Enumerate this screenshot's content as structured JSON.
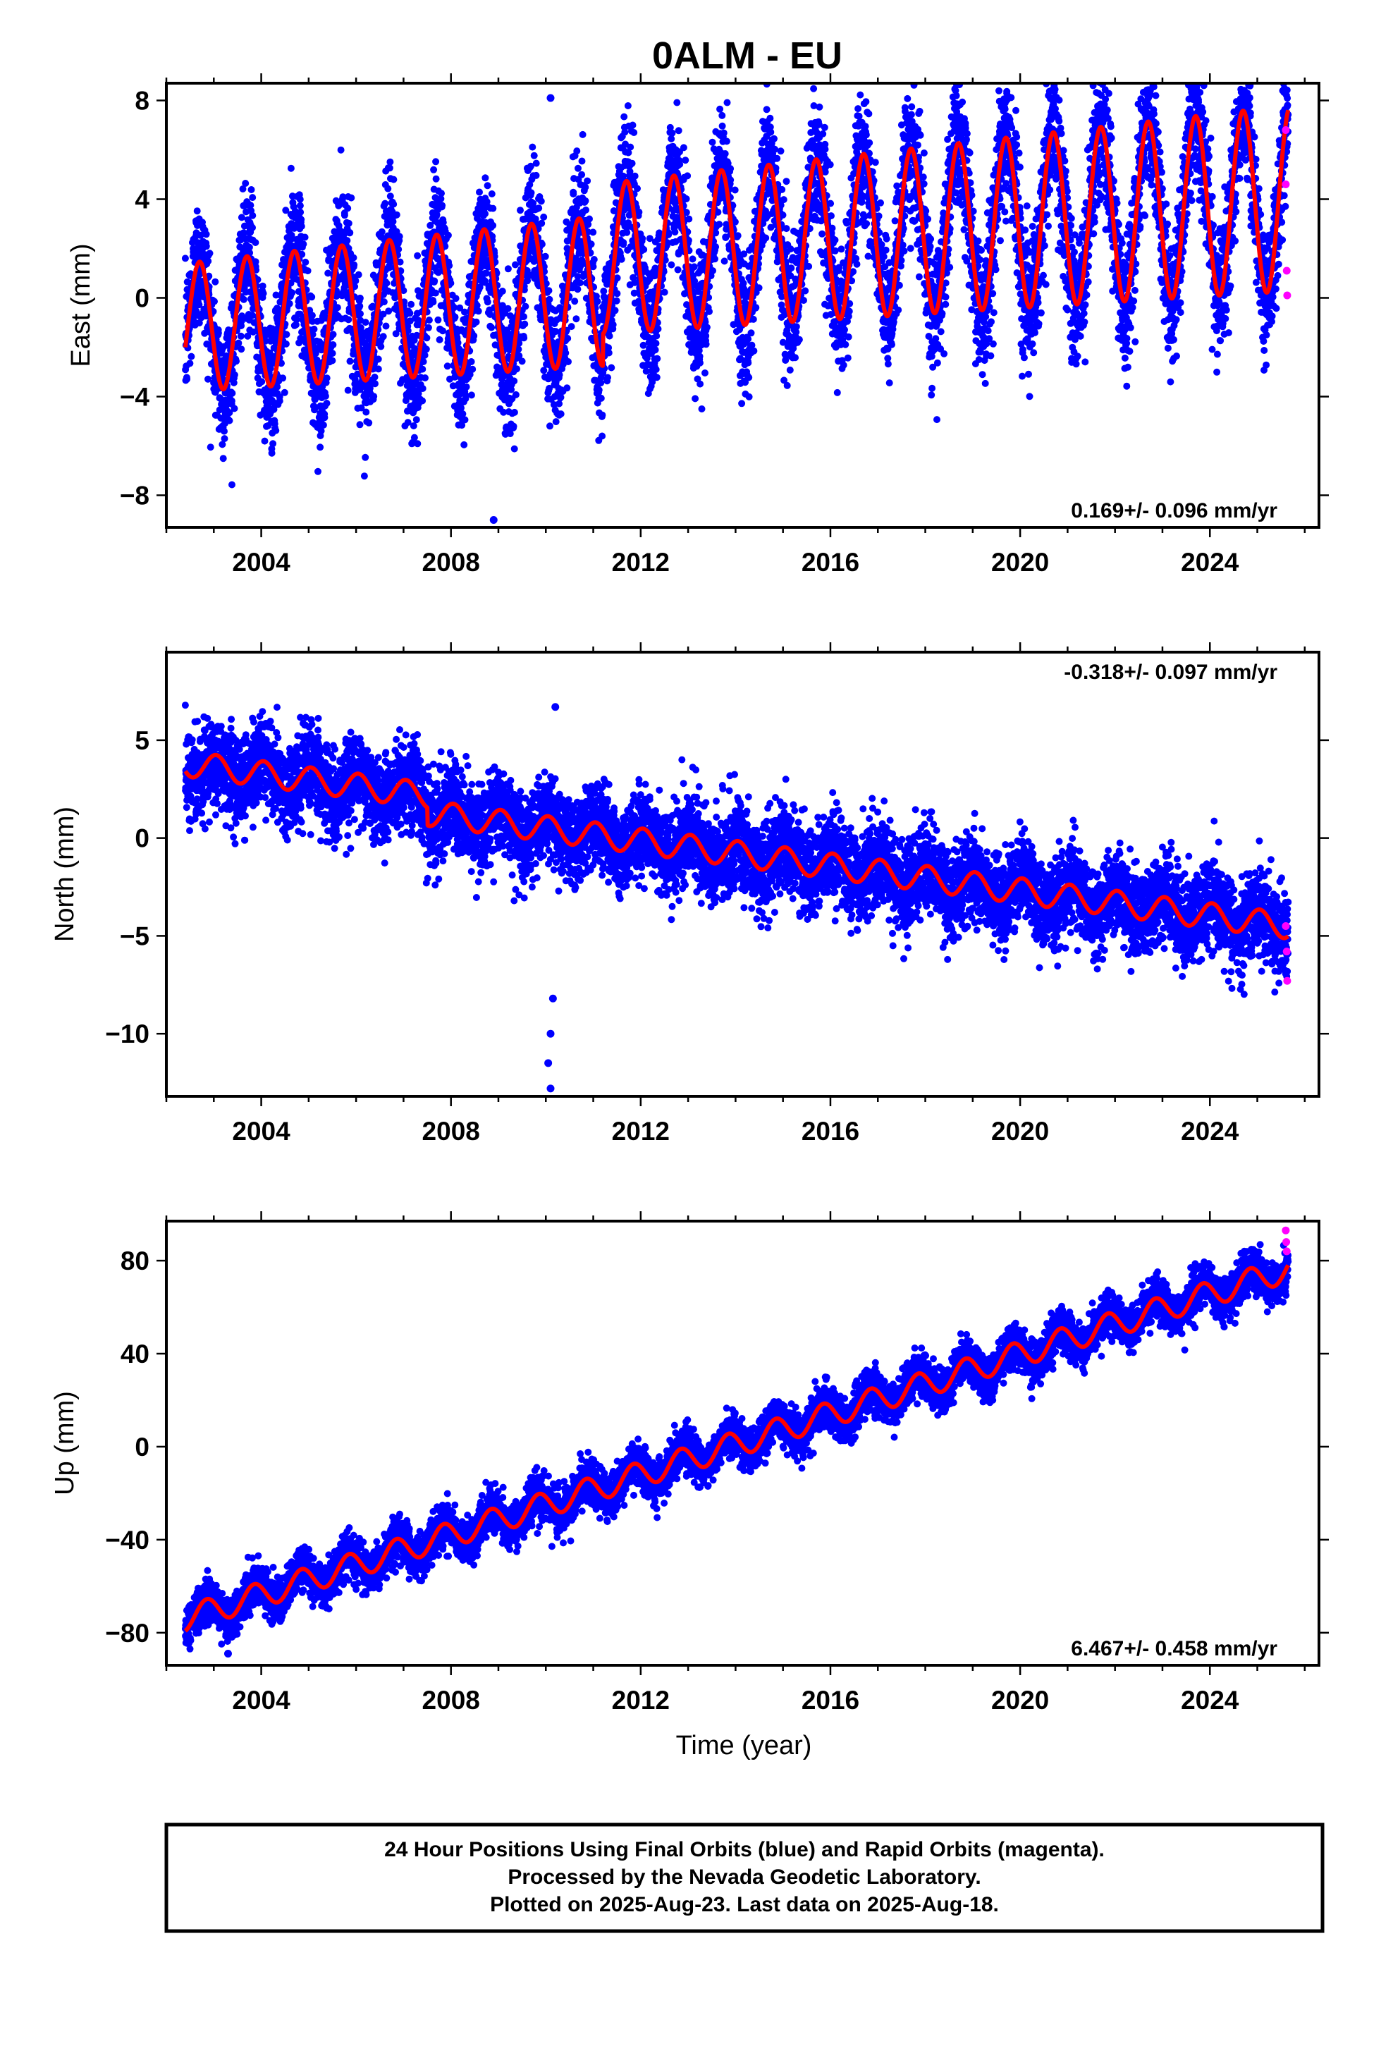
{
  "title": "0ALM - EU",
  "colors": {
    "final": "#0000ff",
    "rapid": "#ff00ff",
    "model": "#ff0000",
    "frame": "#000000"
  },
  "chart_data": [
    {
      "type": "scatter",
      "name": "east",
      "ylabel": "East (mm)",
      "xlim": [
        2002.0,
        2026.3
      ],
      "ylim": [
        -9.3,
        8.7
      ],
      "xticks": [
        2004,
        2008,
        2012,
        2016,
        2020,
        2024
      ],
      "yticks": [
        -8,
        -4,
        0,
        4,
        8
      ],
      "ytick_labels": [
        "−8",
        "−4",
        "0",
        "4",
        "8"
      ],
      "rate_text": "0.169+/- 0.096 mm/yr",
      "rate_pos": "bottom-right",
      "model": {
        "start": 2002.4,
        "end": 2025.65,
        "offset0": -1.2,
        "trend": 0.169,
        "amplitude": 2.6,
        "amp_trend": 0.05,
        "phase_year": 0.45,
        "steps": [
          {
            "at": 2011.2,
            "delta": 1.3
          }
        ]
      },
      "scatter_sd": 1.3,
      "outliers": [
        {
          "x": 2010.1,
          "y": 8.1
        },
        {
          "x": 2008.9,
          "y": -9.0
        }
      ],
      "rapid_points": [
        {
          "x": 2025.6,
          "y": 6.8
        },
        {
          "x": 2025.6,
          "y": 4.6
        },
        {
          "x": 2025.62,
          "y": 1.1
        },
        {
          "x": 2025.63,
          "y": 0.1
        }
      ]
    },
    {
      "type": "scatter",
      "name": "north",
      "ylabel": "North (mm)",
      "xlim": [
        2002.0,
        2026.3
      ],
      "ylim": [
        -13.2,
        9.5
      ],
      "xticks": [
        2004,
        2008,
        2012,
        2016,
        2020,
        2024
      ],
      "yticks": [
        -10,
        -5,
        0,
        5
      ],
      "ytick_labels": [
        "−10",
        "−5",
        "0",
        "5"
      ],
      "rate_text": "-0.318+/- 0.097 mm/yr",
      "rate_pos": "top-right",
      "model": {
        "start": 2002.4,
        "end": 2025.65,
        "offset0": 3.8,
        "trend": -0.318,
        "amplitude": 0.65,
        "amp_trend": 0.0,
        "phase_year": 0.8,
        "steps": [
          {
            "at": 2007.5,
            "delta": -0.9
          }
        ]
      },
      "scatter_sd": 1.1,
      "outliers": [
        {
          "x": 2010.1,
          "y": -12.8
        },
        {
          "x": 2010.05,
          "y": -11.5
        },
        {
          "x": 2010.1,
          "y": -10.0
        },
        {
          "x": 2010.15,
          "y": -8.2
        },
        {
          "x": 2010.2,
          "y": 6.7
        }
      ],
      "rapid_points": [
        {
          "x": 2025.6,
          "y": -4.5
        },
        {
          "x": 2025.62,
          "y": -5.8
        },
        {
          "x": 2025.63,
          "y": -7.3
        }
      ]
    },
    {
      "type": "scatter",
      "name": "up",
      "ylabel": "Up (mm)",
      "xlabel": "Time (year)",
      "xlim": [
        2002.0,
        2026.3
      ],
      "ylim": [
        -94,
        97
      ],
      "xticks": [
        2004,
        2008,
        2012,
        2016,
        2020,
        2024
      ],
      "yticks": [
        -80,
        -40,
        0,
        40,
        80
      ],
      "ytick_labels": [
        "−80",
        "−40",
        "0",
        "40",
        "80"
      ],
      "rate_text": "6.467+/- 0.458 mm/yr",
      "rate_pos": "bottom-right",
      "model": {
        "start": 2002.4,
        "end": 2025.65,
        "offset0": -74,
        "trend": 6.467,
        "amplitude": 5.5,
        "amp_trend": 0.0,
        "phase_year": 0.6,
        "steps": []
      },
      "scatter_sd": 4.5,
      "outliers": [
        {
          "x": 2003.3,
          "y": -89
        }
      ],
      "rapid_points": [
        {
          "x": 2025.6,
          "y": 93
        },
        {
          "x": 2025.61,
          "y": 88
        },
        {
          "x": 2025.62,
          "y": 84
        }
      ]
    }
  ],
  "footer": {
    "line1": "24 Hour Positions Using Final Orbits (blue) and Rapid Orbits (magenta).",
    "line2": "Processed by the Nevada Geodetic Laboratory.",
    "line3": "Plotted on 2025-Aug-23. Last data on 2025-Aug-18."
  }
}
